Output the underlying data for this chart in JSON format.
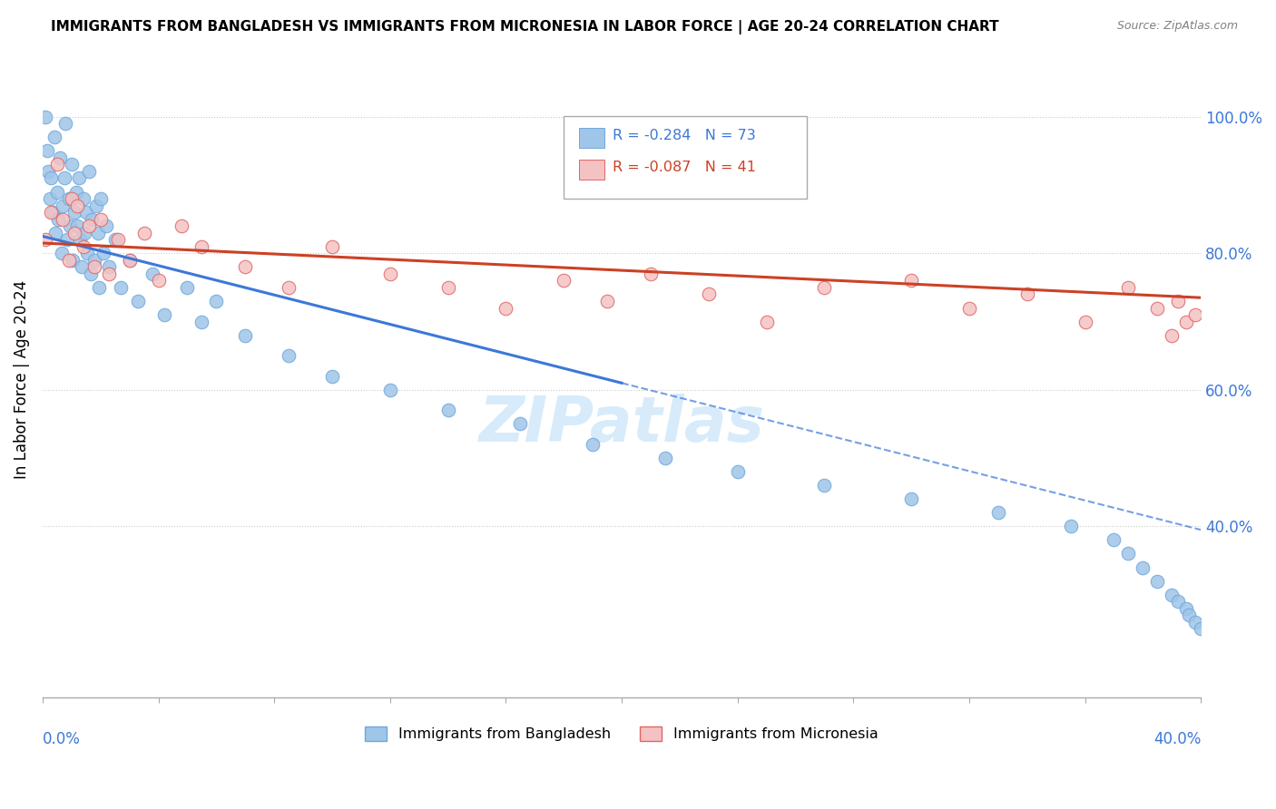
{
  "title": "IMMIGRANTS FROM BANGLADESH VS IMMIGRANTS FROM MICRONESIA IN LABOR FORCE | AGE 20-24 CORRELATION CHART",
  "source": "Source: ZipAtlas.com",
  "ylabel": "In Labor Force | Age 20-24",
  "x_min": 0.0,
  "x_max": 40.0,
  "y_min": 15.0,
  "y_max": 108.0,
  "y_ticks": [
    40.0,
    60.0,
    80.0,
    100.0
  ],
  "bangladesh_R": -0.284,
  "bangladesh_N": 73,
  "micronesia_R": -0.087,
  "micronesia_N": 41,
  "color_bangladesh": "#9fc5e8",
  "color_micronesia": "#f4c2c2",
  "edge_bangladesh": "#6fa8dc",
  "edge_micronesia": "#e06666",
  "trend_color_bangladesh": "#3c78d8",
  "trend_color_micronesia": "#cc4125",
  "watermark": "ZIPatlas",
  "bangladesh_x": [
    0.1,
    0.15,
    0.2,
    0.25,
    0.3,
    0.35,
    0.4,
    0.45,
    0.5,
    0.55,
    0.6,
    0.65,
    0.7,
    0.75,
    0.8,
    0.85,
    0.9,
    0.95,
    1.0,
    1.05,
    1.1,
    1.15,
    1.2,
    1.25,
    1.3,
    1.35,
    1.4,
    1.45,
    1.5,
    1.55,
    1.6,
    1.65,
    1.7,
    1.8,
    1.85,
    1.9,
    1.95,
    2.0,
    2.1,
    2.2,
    2.3,
    2.5,
    2.7,
    3.0,
    3.3,
    3.8,
    4.2,
    5.0,
    5.5,
    6.0,
    7.0,
    8.5,
    10.0,
    12.0,
    14.0,
    16.5,
    19.0,
    21.5,
    24.0,
    27.0,
    30.0,
    33.0,
    35.5,
    37.0,
    37.5,
    38.0,
    38.5,
    39.0,
    39.2,
    39.5,
    39.6,
    39.8,
    40.0
  ],
  "bangladesh_y": [
    100,
    95,
    92,
    88,
    91,
    86,
    97,
    83,
    89,
    85,
    94,
    80,
    87,
    91,
    99,
    82,
    88,
    84,
    93,
    79,
    86,
    89,
    84,
    91,
    82,
    78,
    88,
    83,
    86,
    80,
    92,
    77,
    85,
    79,
    87,
    83,
    75,
    88,
    80,
    84,
    78,
    82,
    75,
    79,
    73,
    77,
    71,
    75,
    70,
    73,
    68,
    65,
    62,
    60,
    57,
    55,
    52,
    50,
    48,
    46,
    44,
    42,
    40,
    38,
    36,
    34,
    32,
    30,
    29,
    28,
    27,
    26,
    25
  ],
  "micronesia_x": [
    0.1,
    0.3,
    0.5,
    0.7,
    0.9,
    1.0,
    1.1,
    1.2,
    1.4,
    1.6,
    1.8,
    2.0,
    2.3,
    2.6,
    3.0,
    3.5,
    4.0,
    4.8,
    5.5,
    7.0,
    8.5,
    10.0,
    12.0,
    14.0,
    16.0,
    18.0,
    19.5,
    21.0,
    23.0,
    25.0,
    27.0,
    30.0,
    32.0,
    34.0,
    36.0,
    37.5,
    38.5,
    39.0,
    39.2,
    39.5,
    39.8
  ],
  "micronesia_y": [
    82,
    86,
    93,
    85,
    79,
    88,
    83,
    87,
    81,
    84,
    78,
    85,
    77,
    82,
    79,
    83,
    76,
    84,
    81,
    78,
    75,
    81,
    77,
    75,
    72,
    76,
    73,
    77,
    74,
    70,
    75,
    76,
    72,
    74,
    70,
    75,
    72,
    68,
    73,
    70,
    71
  ],
  "trend_b_x0": 0.0,
  "trend_b_y0": 82.5,
  "trend_b_x1": 20.0,
  "trend_b_y1": 61.0,
  "trend_b_dash_x1": 40.0,
  "trend_b_dash_y1": 39.5,
  "trend_m_x0": 0.0,
  "trend_m_y0": 81.5,
  "trend_m_x1": 40.0,
  "trend_m_y1": 73.5
}
